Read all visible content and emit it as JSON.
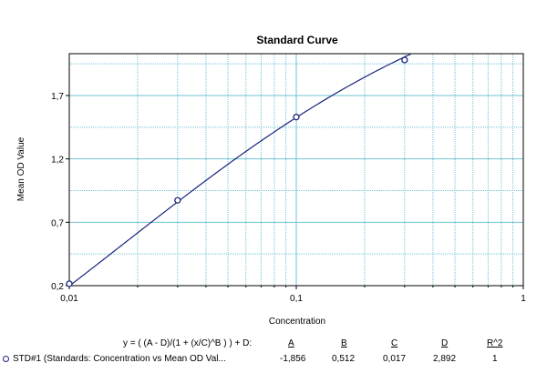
{
  "chart_data": {
    "type": "scatter",
    "title": "Standard Curve",
    "xlabel": "Concentration",
    "ylabel": "Mean OD Value",
    "xscale": "log",
    "xlim": [
      0.01,
      1
    ],
    "ylim": [
      0.2,
      2.03
    ],
    "x_ticks": [
      0.01,
      0.1,
      1
    ],
    "x_tick_labels": [
      "0,01",
      "0,1",
      "1"
    ],
    "y_ticks": [
      0.2,
      0.7,
      1.2,
      1.7
    ],
    "y_tick_labels": [
      "0,2",
      "0,7",
      "1,2",
      "1,7"
    ],
    "grid": true,
    "line_color": "#1a237e",
    "grid_color": "#6fc3d6",
    "series": [
      {
        "name": "STD#1 (Standards: Concentration vs Mean OD Val...",
        "x": [
          0.01,
          0.03,
          0.1,
          0.3
        ],
        "y": [
          0.215,
          0.873,
          1.53,
          1.98
        ]
      }
    ],
    "fit": {
      "equation": "y = ( (A - D)/(1 + (x/C)^B ) ) + D:",
      "param_headers": [
        "A",
        "B",
        "C",
        "D",
        "R^2"
      ],
      "param_values": [
        "-1,856",
        "0,512",
        "0,017",
        "2,892",
        "1"
      ],
      "A": -1.856,
      "B": 0.512,
      "C": 0.017,
      "D": 2.892,
      "R2": 1
    }
  }
}
